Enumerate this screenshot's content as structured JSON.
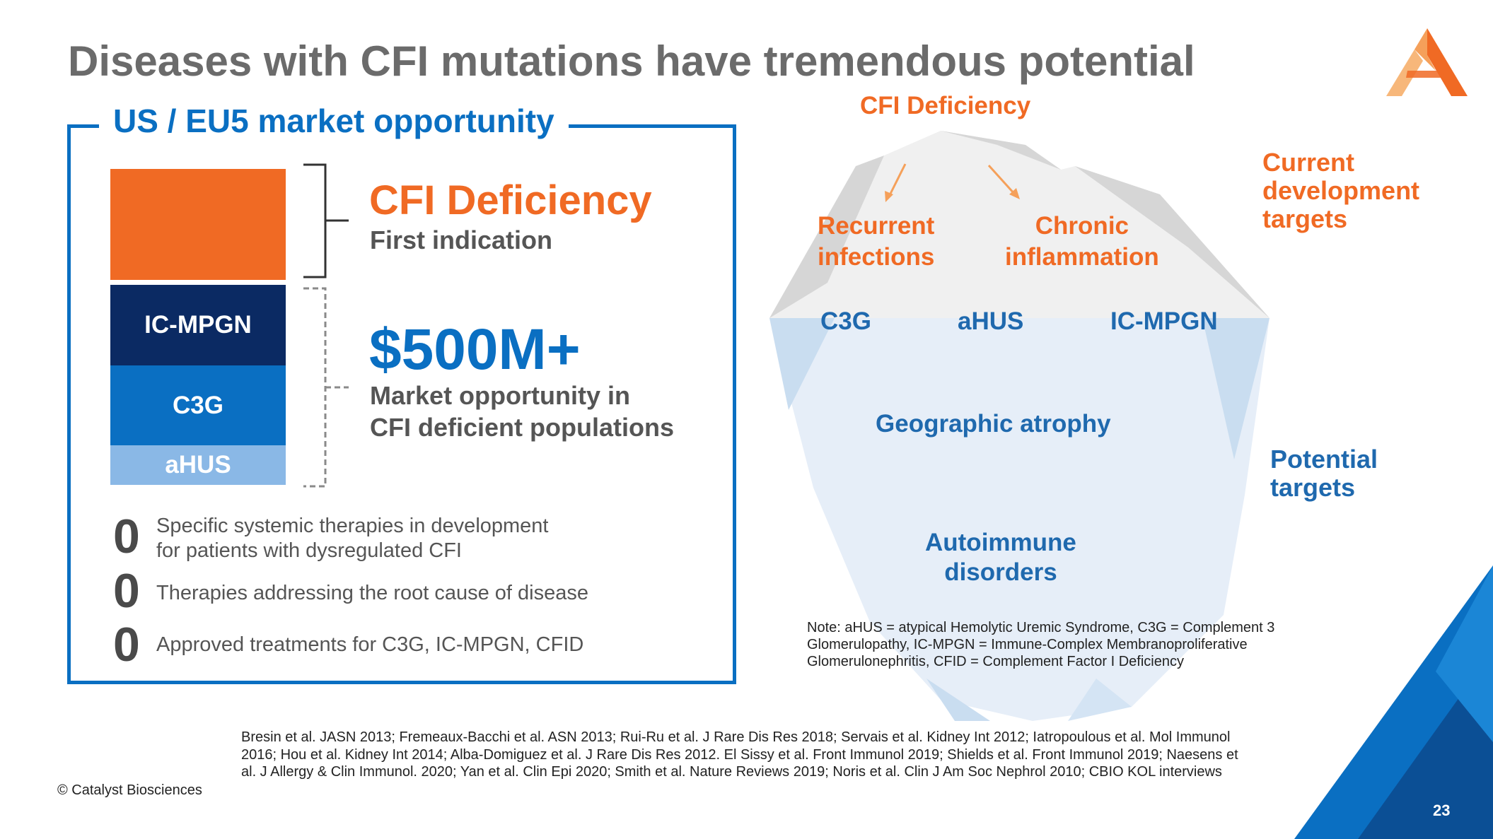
{
  "title": "Diseases with CFI mutations have tremendous potential",
  "market": {
    "heading": "US / EU5 market opportunity",
    "segments": {
      "ic_mpgn": "IC-MPGN",
      "c3g": "C3G",
      "ahus": "aHUS"
    },
    "cfi_heading": "CFI Deficiency",
    "cfi_sub": "First indication",
    "value": "$500M+",
    "value_line1": "Market opportunity in",
    "value_line2": "CFI deficient populations",
    "stats": [
      {
        "num": "0",
        "line1": "Specific systemic therapies in development",
        "line2": "for patients with dysregulated CFI"
      },
      {
        "num": "0",
        "line1": "Therapies addressing the root cause of disease"
      },
      {
        "num": "0",
        "line1": "Approved treatments for C3G, IC-MPGN, CFID"
      }
    ]
  },
  "iceberg": {
    "top": "CFI Deficiency",
    "recurrent_1": "Recurrent",
    "recurrent_2": "infections",
    "chronic_1": "Chronic",
    "chronic_2": "inflammation",
    "c3g": "C3G",
    "ahus": "aHUS",
    "ic_mpgn": "IC-MPGN",
    "geo": "Geographic atrophy",
    "auto_1": "Autoimmune",
    "auto_2": "disorders",
    "current_1": "Current",
    "current_2": "development",
    "current_3": "targets",
    "potential_1": "Potential",
    "potential_2": "targets"
  },
  "note": {
    "line1": "Note: aHUS = atypical Hemolytic Uremic Syndrome, C3G = Complement 3",
    "line2": "Glomerulopathy, IC-MPGN = Immune-Complex Membranoproliferative",
    "line3": "Glomerulonephritis, CFID = Complement Factor I Deficiency"
  },
  "references": "Bresin et al. JASN 2013; Fremeaux-Bacchi et al. ASN 2013; Rui-Ru et al. J Rare Dis Res 2018; Servais et al. Kidney Int 2012; Iatropoulous et al. Mol Immunol 2016; Hou et al. Kidney Int 2014; Alba-Domiguez et al. J Rare Dis Res 2012. El Sissy et al. Front Immunol 2019; Shields et al. Front Immunol 2019; Naesens et al. J Allergy & Clin Immunol. 2020;  Yan et al. Clin Epi 2020; Smith et al. Nature Reviews 2019; Noris et al. Clin J Am Soc Nephrol 2010; CBIO KOL interviews",
  "copyright": "© Catalyst Biosciences",
  "page_number": "23",
  "colors": {
    "orange": "#f06a24",
    "blue": "#0a6fc2",
    "navy": "#0b2a63",
    "light_blue": "#8ab8e6"
  }
}
